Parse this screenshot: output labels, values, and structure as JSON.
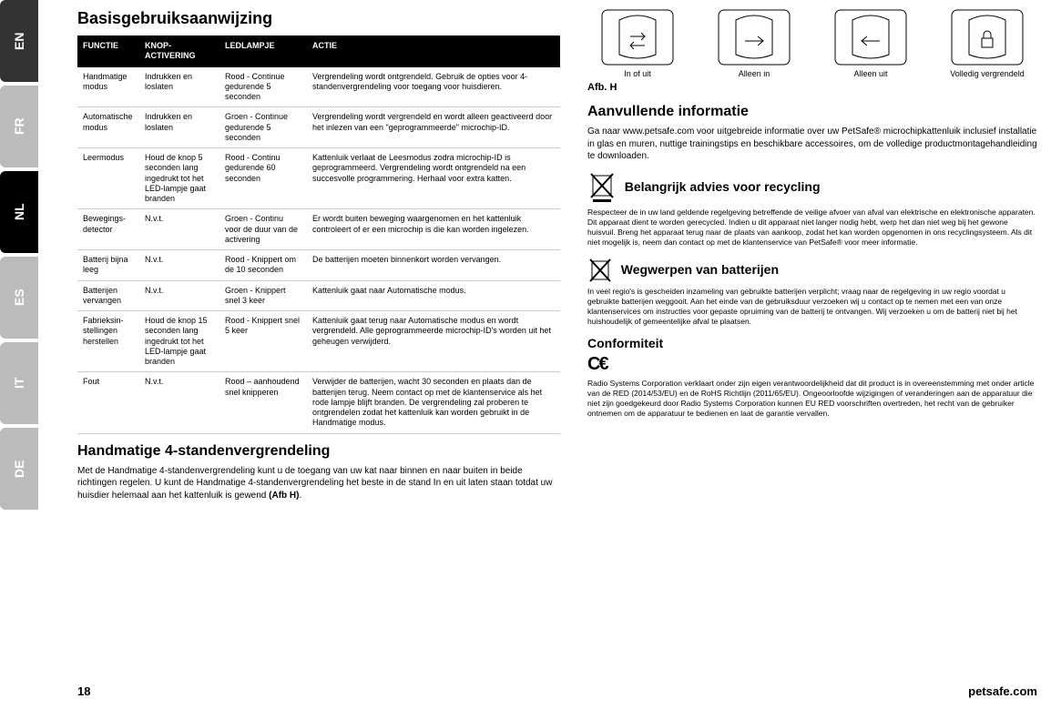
{
  "lang_tabs": [
    "EN",
    "FR",
    "NL",
    "ES",
    "IT",
    "DE"
  ],
  "active_lang_index": 2,
  "left": {
    "title": "Basisgebruiksaanwijzing",
    "table": {
      "headers": [
        "FUNCTIE",
        "KNOP-ACTIVERING",
        "LEDLAMPJE",
        "ACTIE"
      ],
      "rows": [
        [
          "Handmatige modus",
          "Indrukken en loslaten",
          "Rood - Continue gedurende 5 seconden",
          "Vergrendeling wordt ontgrendeld. Gebruik de opties voor 4-standenvergrendeling voor toegang voor huisdieren."
        ],
        [
          "Automatische modus",
          "Indrukken en loslaten",
          "Groen - Continue gedurende 5 seconden",
          "Vergrendeling wordt vergrendeld en wordt alleen geactiveerd door het inlezen van een \"geprogrammeerde\" microchip-ID."
        ],
        [
          "Leermodus",
          "Houd de knop 5 seconden lang ingedrukt tot het LED-lampje gaat branden",
          "Rood - Continu gedurende 60 seconden",
          "Kattenluik verlaat de Leesmodus zodra microchip-ID is geprogrammeerd. Vergrendeling wordt ontgrendeld na een succesvolle programmering. Herhaal voor extra katten."
        ],
        [
          "Bewegings-detector",
          "N.v.t.",
          "Groen - Continu voor de duur van de activering",
          "Er wordt buiten beweging waargenomen en het kattenluik controleert of er een microchip is die kan worden ingelezen."
        ],
        [
          "Batterij bijna leeg",
          "N.v.t.",
          "Rood - Knippert om de 10 seconden",
          "De batterijen moeten binnenkort worden vervangen."
        ],
        [
          "Batterijen vervangen",
          "N.v.t.",
          "Groen - Knippert snel 3 keer",
          "Kattenluik gaat naar Automatische modus."
        ],
        [
          "Fabrieksin-stellingen herstellen",
          "Houd de knop 15 seconden lang ingedrukt tot het LED-lampje gaat branden",
          "Rood - Knippert snel 5 keer",
          "Kattenluik gaat terug naar Automatische modus en wordt vergrendeld. Alle geprogrammeerde microchip-ID's worden uit het geheugen verwijderd."
        ],
        [
          "Fout",
          "N.v.t.",
          "Rood – aanhoudend snel knipperen",
          "Verwijder de batterijen, wacht 30 seconden en plaats dan de batterijen terug. Neem contact op met de klantenservice als het rode lampje blijft branden. De vergrendeling zal proberen te ontgrendelen zodat het kattenluik kan worden gebruikt in de Handmatige modus."
        ]
      ]
    },
    "section2_title": "Handmatige 4-standenvergrendeling",
    "section2_body": "Met de Handmatige 4-standenvergrendeling kunt u de toegang van uw kat naar binnen en naar buiten in beide richtingen regelen. U kunt de Handmatige 4-standenvergrendeling het beste in de stand In en uit laten staan totdat uw huisdier helemaal aan het kattenluik is gewend ",
    "section2_bold": "(Afb H)"
  },
  "right": {
    "fig_captions": [
      "In of uit",
      "Alleen in",
      "Alleen uit",
      "Volledig vergrendeld"
    ],
    "fig_label": "Afb. H",
    "title": "Aanvullende informatie",
    "intro": "Ga naar www.petsafe.com voor uitgebreide informatie over uw PetSafe® microchipkattenluik inclusief installatie in glas en muren, nuttige trainingstips en beschikbare accessoires, om de volledige productmontagehandleiding te downloaden.",
    "recycle_title": "Belangrijk advies voor recycling",
    "recycle_body": "Respecteer de in uw land geldende regelgeving betreffende de veilige afvoer van afval van elektrische en elektronische apparaten. Dit apparaat dient te worden gerecycled. Indien u dit apparaat niet langer nodig hebt, werp het dan niet weg bij het gewone huisvuil. Breng het apparaat terug naar de plaats van aankoop, zodat het kan worden opgenomen in ons recyclingsysteem. Als dit niet mogelijk is, neem dan contact op met de klantenservice van PetSafe® voor meer informatie.",
    "battery_title": "Wegwerpen van batterijen",
    "battery_body": "In veel regio's is gescheiden inzameling van gebruikte batterijen verplicht; vraag naar de regelgeving in uw regio voordat u gebruikte batterijen weggooit. Aan het einde van de gebruiksduur verzoeken wij u contact op te nemen met een van onze klantenservices om instructies voor gepaste opruiming van de batterij te ontvangen. Wij verzoeken u om de batterij niet bij het huishoudelijk of gemeentelijke afval te plaatsen.",
    "conformity_title": "Conformiteit",
    "conformity_body": "Radio Systems Corporation verklaart onder zijn eigen verantwoordelijkheid dat dit product is in overeenstemming met onder article van de RED (2014/53/EU) en de RoHS Richtlijn (2011/65/EU). Ongeoorloofde wijzigingen of veranderingen aan de apparatuur die niet zijn goedgekeurd door Radio Systems Corporation kunnen EU RED voorschriften overtreden, het recht van de gebruiker ontnemen om de apparatuur te bedienen en laat de garantie vervallen."
  },
  "footer": {
    "page": "18",
    "site": "petsafe.com"
  },
  "colors": {
    "header_bg": "#000000",
    "header_fg": "#ffffff",
    "row_border": "#cccccc",
    "tab_dark": "#333333",
    "tab_light": "#bbbbbb"
  }
}
